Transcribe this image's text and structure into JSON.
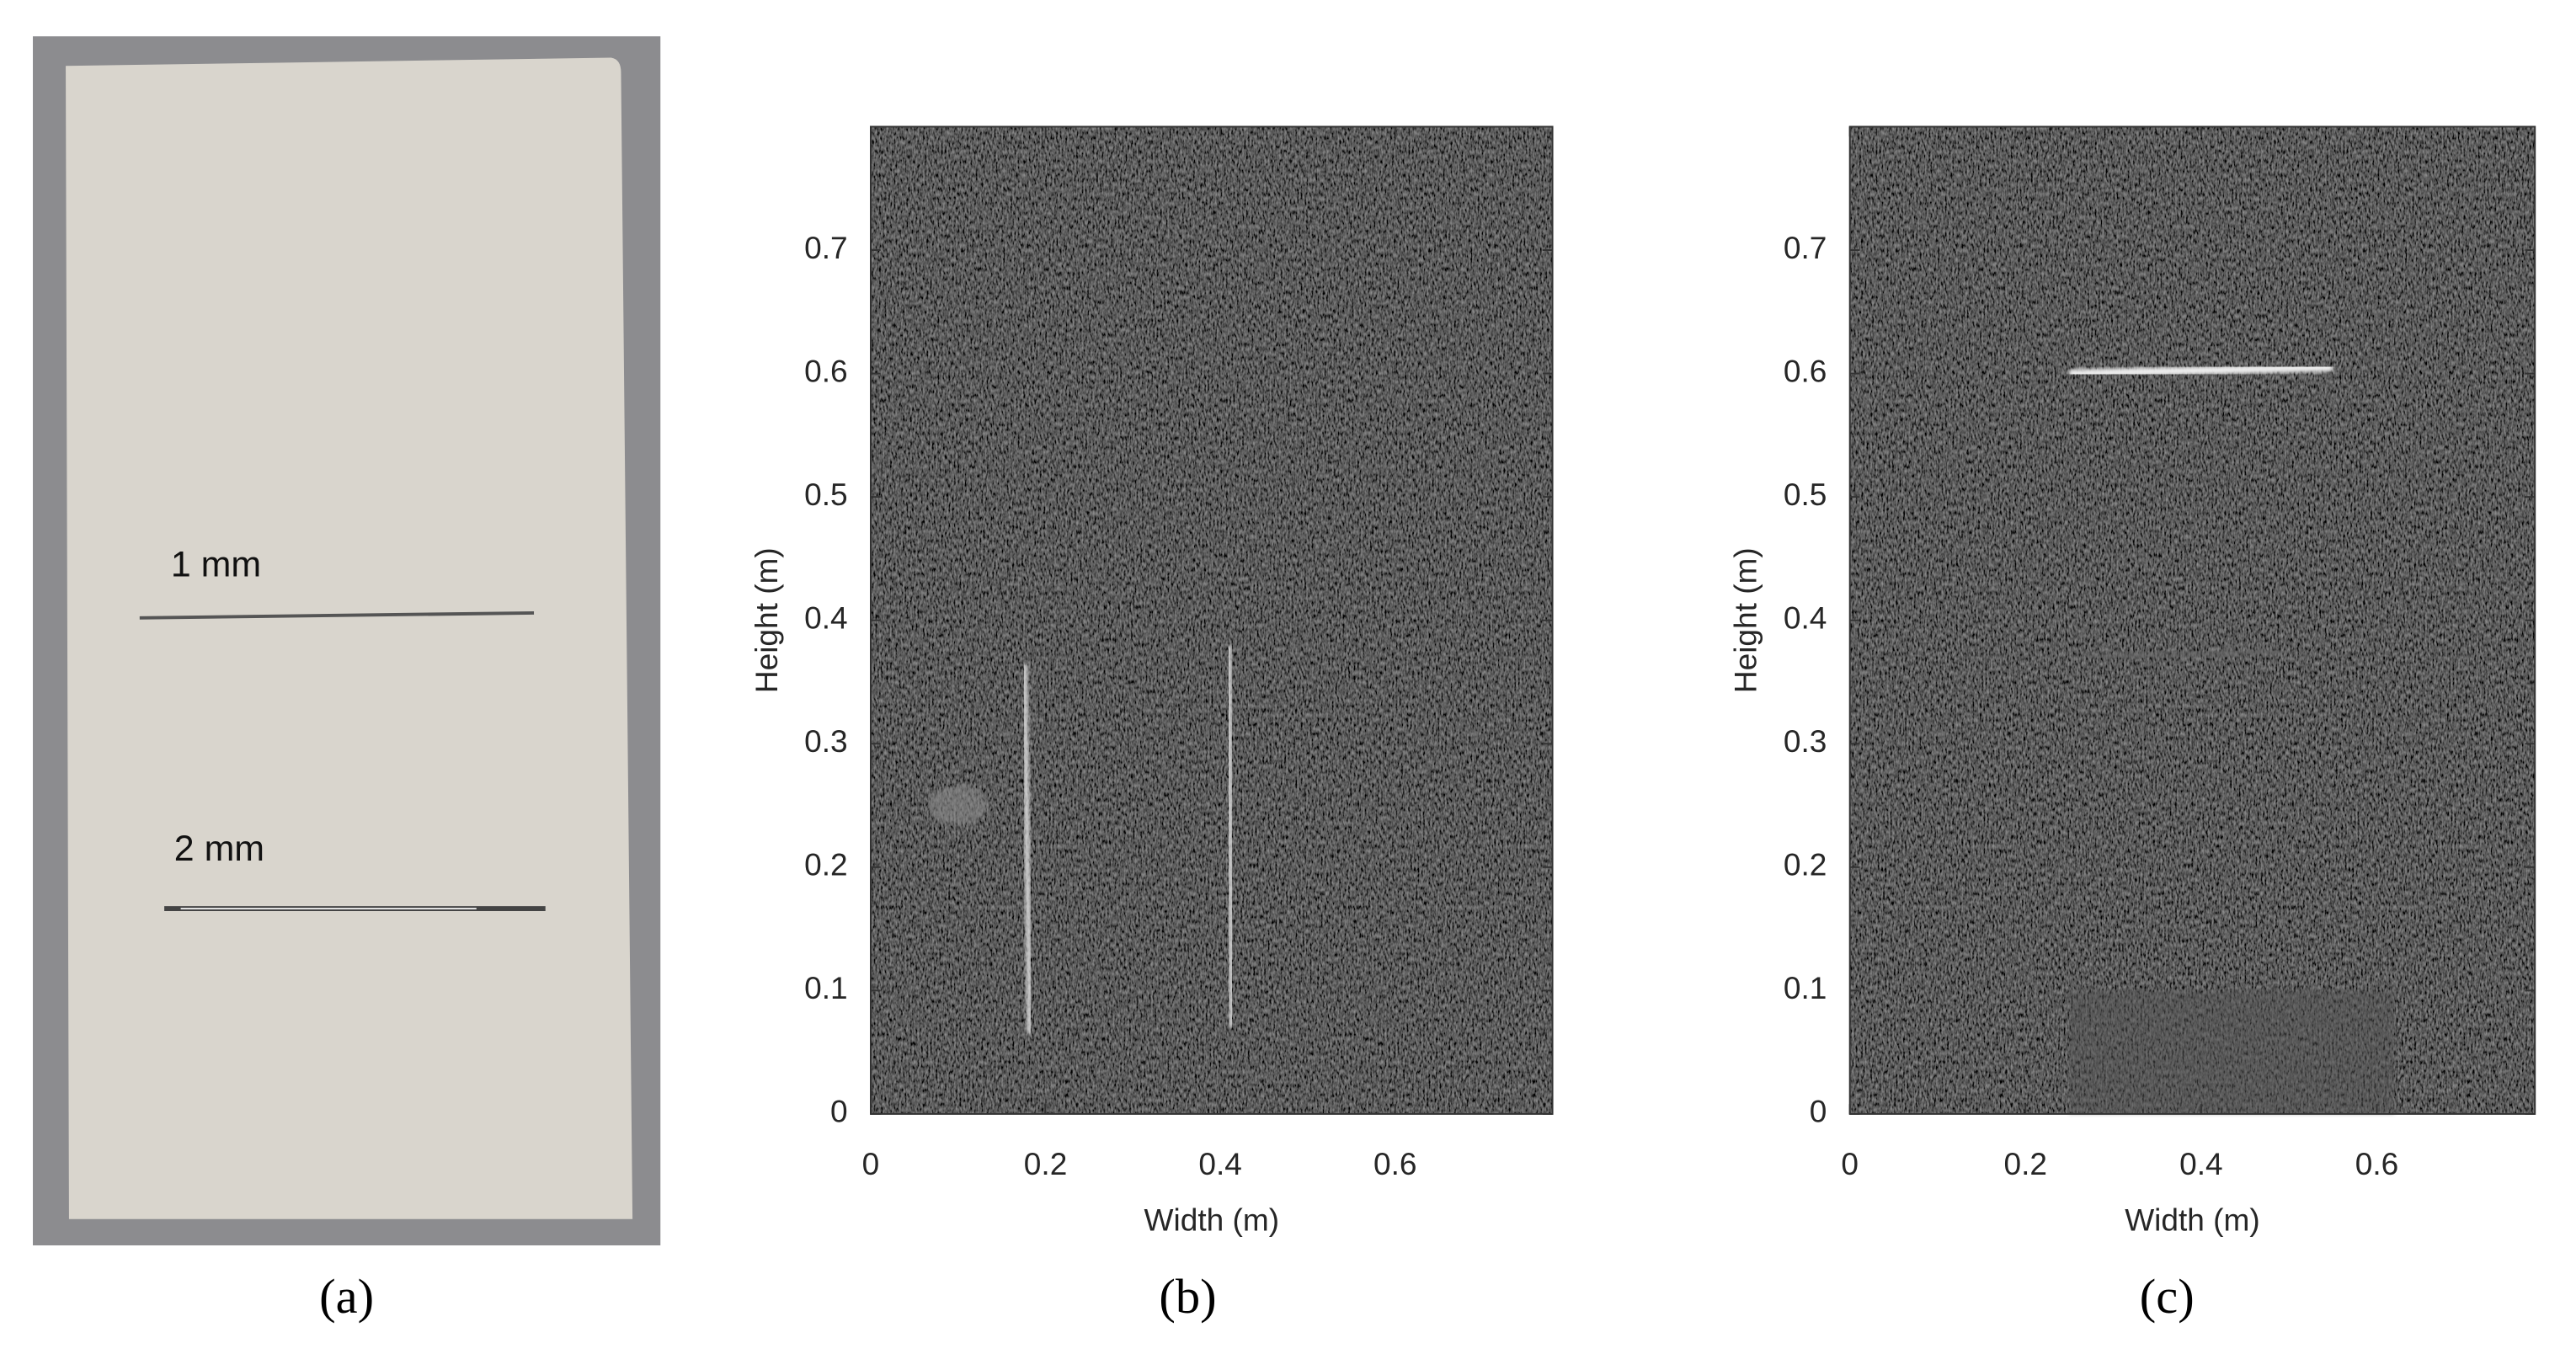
{
  "photo": {
    "labels": [
      "1 mm",
      "2 mm"
    ]
  },
  "captions": [
    "(a)",
    "(b)",
    "(c)"
  ],
  "chart_data": [
    {
      "type": "image",
      "xlabel": "Width (m)",
      "ylabel": "Height (m)",
      "xlim": [
        0,
        0.78
      ],
      "ylim": [
        0,
        0.8
      ],
      "xticks": [
        0,
        0.2,
        0.4,
        0.6
      ],
      "yticks": [
        0,
        0.1,
        0.2,
        0.3,
        0.4,
        0.5,
        0.6,
        0.7
      ]
    },
    {
      "type": "image",
      "xlabel": "Width (m)",
      "ylabel": "Height (m)",
      "xlim": [
        0,
        0.78
      ],
      "ylim": [
        0,
        0.8
      ],
      "xticks": [
        0,
        0.2,
        0.4,
        0.6
      ],
      "yticks": [
        0,
        0.1,
        0.2,
        0.3,
        0.4,
        0.5,
        0.6,
        0.7
      ]
    }
  ]
}
